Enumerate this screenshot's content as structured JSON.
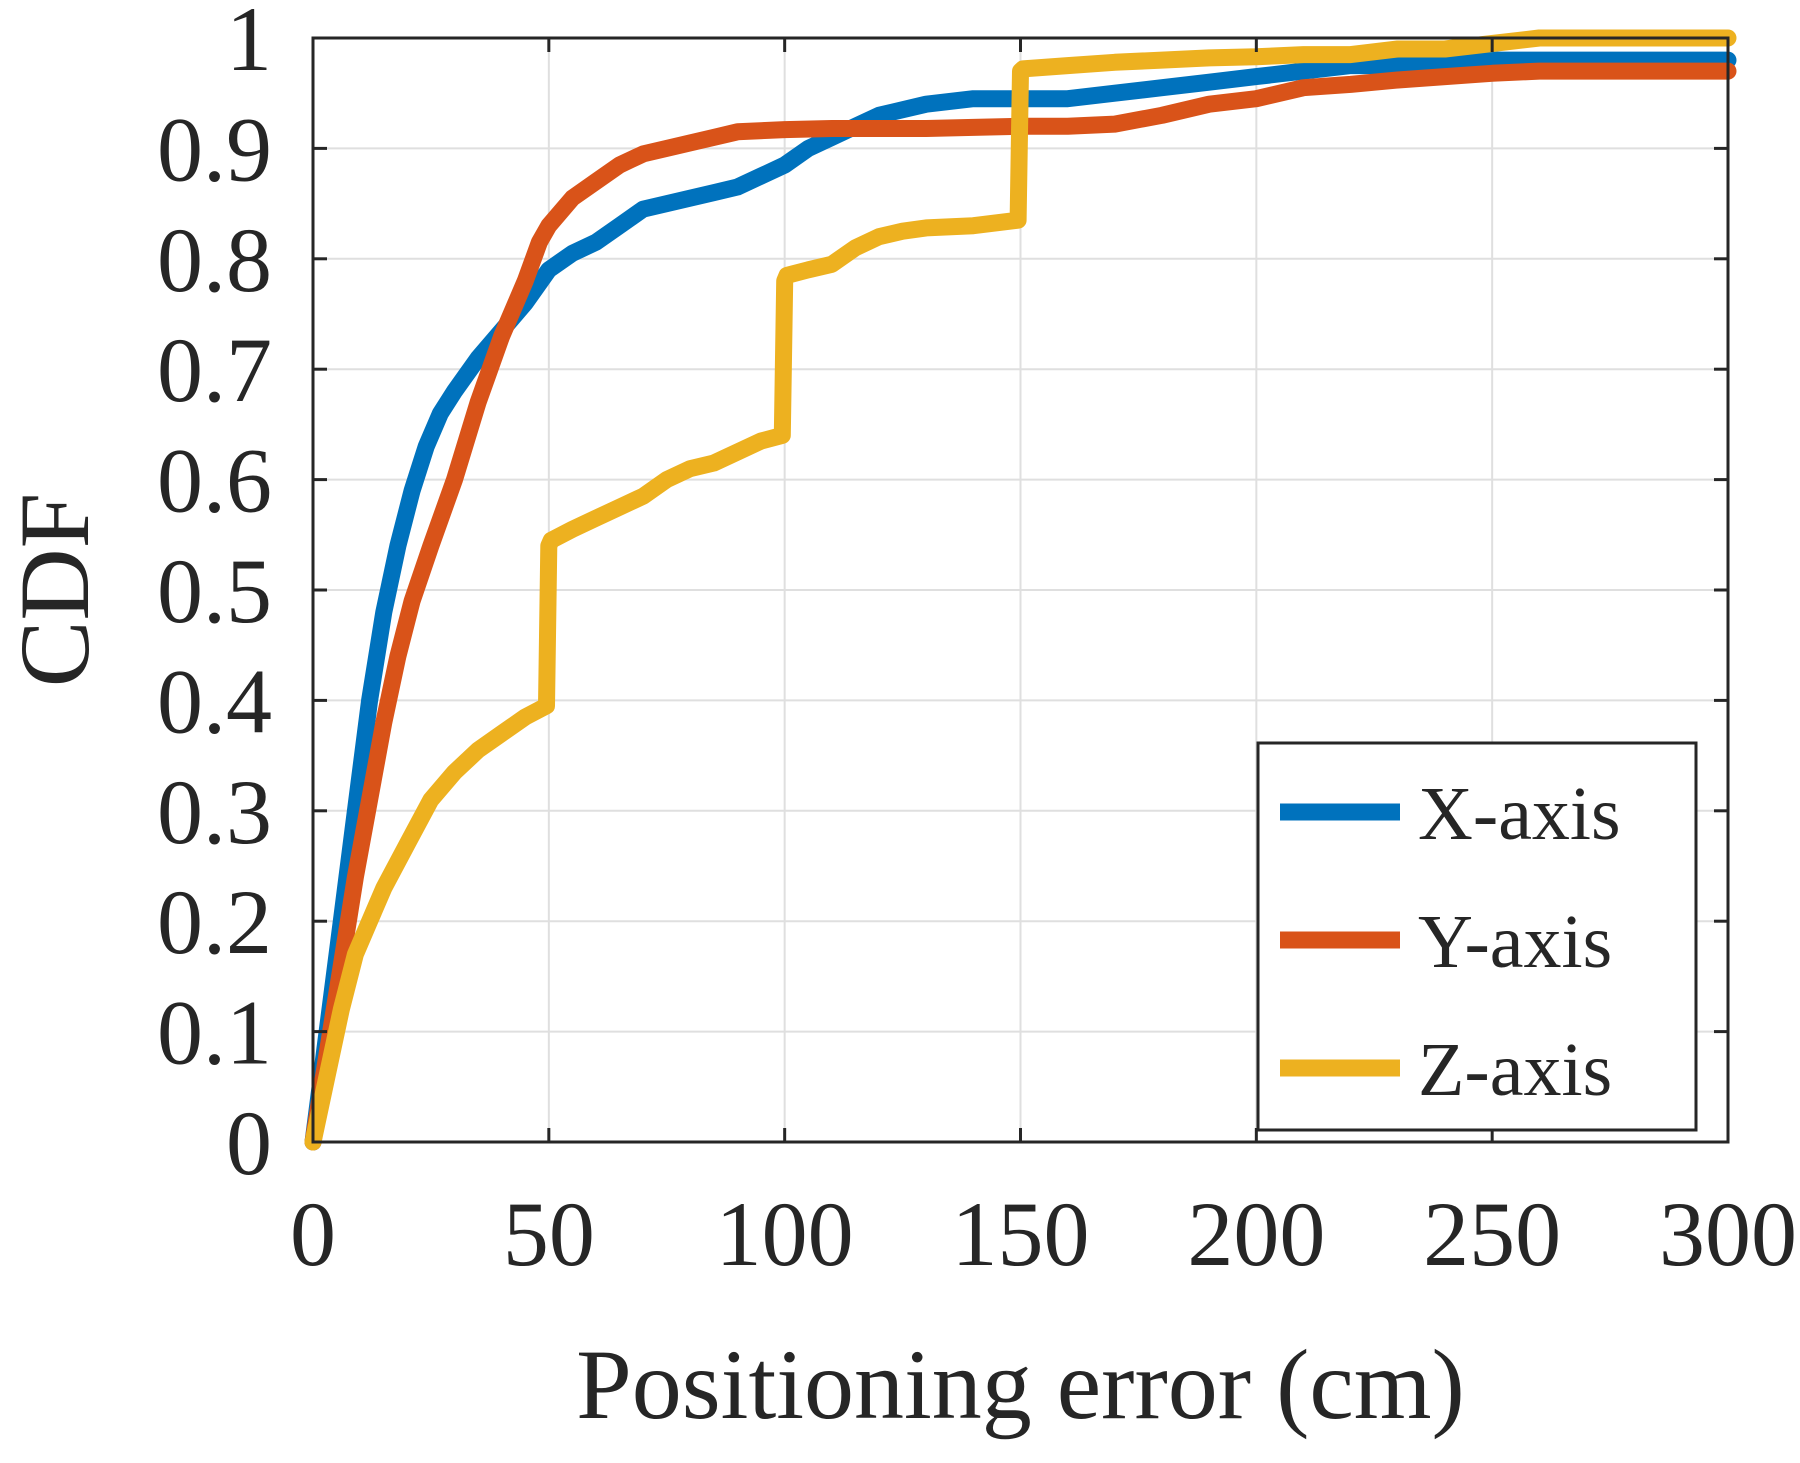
{
  "chart_data": {
    "type": "line",
    "xlabel": "Positioning error (cm)",
    "ylabel": "CDF",
    "xlim": [
      0,
      300
    ],
    "ylim": [
      0,
      1
    ],
    "xticks": [
      "0",
      "50",
      "100",
      "150",
      "200",
      "250",
      "300"
    ],
    "yticks": [
      "0",
      "0.1",
      "0.2",
      "0.3",
      "0.4",
      "0.5",
      "0.6",
      "0.7",
      "0.8",
      "0.9",
      "1"
    ],
    "grid": true,
    "legend_position": "bottom-right",
    "series": [
      {
        "name": "X-axis",
        "color": "#0072BD",
        "x": [
          0,
          3,
          6,
          9,
          12,
          15,
          18,
          21,
          24,
          27,
          30,
          35,
          40,
          45,
          50,
          55,
          60,
          65,
          70,
          75,
          80,
          85,
          90,
          95,
          100,
          105,
          110,
          115,
          120,
          130,
          140,
          150,
          160,
          170,
          180,
          190,
          200,
          210,
          220,
          230,
          240,
          250,
          260,
          270,
          280,
          290,
          300
        ],
        "y": [
          0,
          0.1,
          0.2,
          0.3,
          0.4,
          0.48,
          0.54,
          0.59,
          0.63,
          0.66,
          0.68,
          0.71,
          0.735,
          0.76,
          0.79,
          0.805,
          0.815,
          0.83,
          0.845,
          0.85,
          0.855,
          0.86,
          0.865,
          0.875,
          0.885,
          0.9,
          0.91,
          0.92,
          0.93,
          0.94,
          0.945,
          0.945,
          0.945,
          0.95,
          0.955,
          0.96,
          0.965,
          0.97,
          0.975,
          0.975,
          0.98,
          0.98,
          0.98,
          0.98,
          0.98,
          0.98,
          0.98
        ]
      },
      {
        "name": "Y-axis",
        "color": "#D95319",
        "x": [
          0,
          3,
          6,
          9,
          12,
          15,
          18,
          21,
          25,
          30,
          35,
          40,
          45,
          48,
          50,
          55,
          60,
          65,
          70,
          75,
          80,
          85,
          90,
          100,
          110,
          120,
          130,
          140,
          150,
          160,
          170,
          180,
          190,
          200,
          210,
          220,
          230,
          240,
          250,
          260,
          270,
          280,
          290,
          300
        ],
        "y": [
          0,
          0.08,
          0.16,
          0.24,
          0.31,
          0.38,
          0.44,
          0.49,
          0.54,
          0.6,
          0.67,
          0.73,
          0.78,
          0.815,
          0.83,
          0.855,
          0.87,
          0.885,
          0.895,
          0.9,
          0.905,
          0.91,
          0.915,
          0.917,
          0.918,
          0.918,
          0.918,
          0.919,
          0.92,
          0.92,
          0.922,
          0.93,
          0.94,
          0.945,
          0.955,
          0.958,
          0.962,
          0.965,
          0.968,
          0.97,
          0.97,
          0.97,
          0.97,
          0.97
        ]
      },
      {
        "name": "Z-axis",
        "color": "#EDB120",
        "x": [
          0,
          3,
          6,
          9,
          12,
          15,
          20,
          25,
          30,
          35,
          40,
          45,
          49.5,
          50,
          50.5,
          55,
          60,
          65,
          70,
          75,
          80,
          85,
          90,
          95,
          99.5,
          100,
          100.5,
          105,
          110,
          115,
          120,
          125,
          130,
          140,
          149.5,
          150,
          150.5,
          160,
          170,
          180,
          190,
          200,
          210,
          220,
          230,
          240,
          250,
          260,
          270,
          280,
          290,
          300
        ],
        "y": [
          0,
          0.06,
          0.12,
          0.17,
          0.2,
          0.23,
          0.27,
          0.31,
          0.335,
          0.355,
          0.37,
          0.385,
          0.395,
          0.54,
          0.545,
          0.555,
          0.565,
          0.575,
          0.585,
          0.6,
          0.61,
          0.615,
          0.625,
          0.635,
          0.64,
          0.78,
          0.785,
          0.79,
          0.795,
          0.81,
          0.82,
          0.825,
          0.828,
          0.83,
          0.835,
          0.97,
          0.972,
          0.975,
          0.978,
          0.98,
          0.982,
          0.983,
          0.985,
          0.985,
          0.99,
          0.99,
          0.995,
          1,
          1,
          1,
          1,
          1
        ]
      }
    ]
  }
}
